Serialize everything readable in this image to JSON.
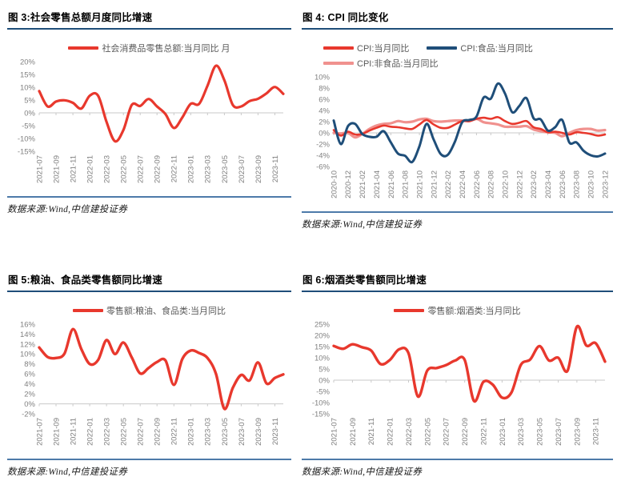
{
  "source_note": "数据来源:Wind,中信建投证券",
  "colors": {
    "red": "#e8382d",
    "dark_blue": "#1f4e79",
    "pink": "#f0918e",
    "title_rule": "#1f4e79",
    "source_rule": "#4d7aa9",
    "axis": "#c9c9c9",
    "tick_text": "#808080",
    "legend_text": "#595959"
  },
  "chart_data": [
    {
      "type": "line",
      "title": "图 3:社会零售总额月度同比增速",
      "ylabel": "",
      "xlabel": "",
      "ylim": [
        -15,
        20
      ],
      "yticks": [
        20,
        15,
        10,
        5,
        0,
        -5,
        -10,
        -15
      ],
      "ytick_format": "percent",
      "grid": false,
      "legend_position": "top-center",
      "x": [
        "2021-07",
        "2021-08",
        "2021-09",
        "2021-10",
        "2021-11",
        "2021-12",
        "2022-01",
        "2022-02",
        "2022-03",
        "2022-04",
        "2022-05",
        "2022-06",
        "2022-07",
        "2022-08",
        "2022-09",
        "2022-10",
        "2022-11",
        "2022-12",
        "2023-01",
        "2023-02",
        "2023-03",
        "2023-04",
        "2023-05",
        "2023-06",
        "2023-07",
        "2023-08",
        "2023-09",
        "2023-10",
        "2023-11",
        "2023-12"
      ],
      "xtick_every": 2,
      "series": [
        {
          "name": "社会消费品零售总额:当月同比 月",
          "color": "#e8382d",
          "width": 3.2,
          "values": [
            8.5,
            2.5,
            4.4,
            4.9,
            3.9,
            1.7,
            6.7,
            6.7,
            -3.5,
            -11.1,
            -6.7,
            3.1,
            2.7,
            5.4,
            2.5,
            -0.5,
            -5.9,
            -1.8,
            3.5,
            3.5,
            10.6,
            18.4,
            12.7,
            3.1,
            2.5,
            4.6,
            5.5,
            7.6,
            10.1,
            7.4
          ]
        }
      ]
    },
    {
      "type": "line",
      "title": "图 4: CPI 同比变化",
      "ylabel": "",
      "xlabel": "",
      "ylim": [
        -6,
        10
      ],
      "yticks": [
        10,
        8,
        6,
        4,
        2,
        0,
        -2,
        -4,
        -6
      ],
      "ytick_format": "percent",
      "grid": false,
      "legend_position": "top-center",
      "legend_fixed_width": 335,
      "x": [
        "2020-10",
        "2020-11",
        "2020-12",
        "2021-01",
        "2021-02",
        "2021-03",
        "2021-04",
        "2021-05",
        "2021-06",
        "2021-07",
        "2021-08",
        "2021-09",
        "2021-10",
        "2021-11",
        "2021-12",
        "2022-01",
        "2022-02",
        "2022-03",
        "2022-04",
        "2022-05",
        "2022-06",
        "2022-07",
        "2022-08",
        "2022-09",
        "2022-10",
        "2022-11",
        "2022-12",
        "2023-01",
        "2023-02",
        "2023-03",
        "2023-04",
        "2023-05",
        "2023-06",
        "2023-07",
        "2023-08",
        "2023-09",
        "2023-10",
        "2023-11",
        "2023-12"
      ],
      "xtick_every": 2,
      "draw_order": [
        2,
        0,
        1
      ],
      "series": [
        {
          "name": "CPI:当月同比",
          "color": "#e8382d",
          "width": 2.6,
          "values": [
            0.5,
            -0.5,
            0.2,
            -0.3,
            -0.2,
            0.4,
            0.9,
            1.3,
            1.1,
            1.0,
            0.8,
            0.7,
            1.5,
            2.3,
            1.5,
            0.9,
            0.9,
            1.5,
            2.1,
            2.1,
            2.5,
            2.7,
            2.5,
            2.8,
            2.1,
            1.6,
            1.8,
            2.1,
            1.0,
            0.7,
            0.1,
            0.2,
            0.0,
            -0.3,
            0.1,
            0.0,
            -0.2,
            -0.5,
            -0.3
          ]
        },
        {
          "name": "CPI:食品:当月同比",
          "color": "#1f4e79",
          "width": 3.0,
          "values": [
            2.2,
            -2.0,
            1.2,
            1.6,
            -0.2,
            -0.7,
            -0.7,
            0.3,
            -1.7,
            -3.7,
            -4.1,
            -5.2,
            -2.4,
            1.6,
            -1.2,
            -3.8,
            -3.9,
            -1.5,
            1.9,
            2.3,
            2.9,
            6.3,
            6.1,
            8.8,
            7.0,
            3.7,
            4.8,
            6.2,
            2.6,
            2.4,
            0.4,
            1.0,
            2.3,
            -1.7,
            -1.7,
            -3.2,
            -4.0,
            -4.2,
            -3.7
          ]
        },
        {
          "name": "CPI:非食品:当月同比",
          "color": "#f0918e",
          "width": 3.2,
          "values": [
            0.0,
            -0.1,
            0.0,
            -0.8,
            -0.2,
            0.7,
            1.3,
            1.6,
            1.7,
            2.1,
            1.9,
            2.0,
            2.4,
            2.5,
            2.1,
            2.0,
            2.1,
            2.2,
            2.2,
            2.1,
            2.5,
            1.9,
            1.7,
            1.5,
            1.1,
            1.1,
            1.1,
            1.2,
            0.6,
            0.3,
            0.1,
            0.0,
            -0.6,
            0.0,
            0.5,
            0.7,
            0.7,
            0.4,
            0.5
          ]
        }
      ]
    },
    {
      "type": "line",
      "title": "图 5:粮油、食品类零售额同比增速",
      "ylabel": "",
      "xlabel": "",
      "ylim": [
        -2,
        16
      ],
      "yticks": [
        16,
        14,
        12,
        10,
        8,
        6,
        4,
        2,
        0,
        -2
      ],
      "ytick_format": "percent",
      "grid": false,
      "legend_position": "top-center",
      "x": [
        "2021-07",
        "2021-08",
        "2021-09",
        "2021-10",
        "2021-11",
        "2021-12",
        "2022-01",
        "2022-02",
        "2022-03",
        "2022-04",
        "2022-05",
        "2022-06",
        "2022-07",
        "2022-08",
        "2022-09",
        "2022-10",
        "2022-11",
        "2022-12",
        "2023-01",
        "2023-02",
        "2023-03",
        "2023-04",
        "2023-05",
        "2023-06",
        "2023-07",
        "2023-08",
        "2023-09",
        "2023-10",
        "2023-11",
        "2023-12"
      ],
      "xtick_every": 2,
      "series": [
        {
          "name": "零售额:粮油、食品类:当月同比",
          "color": "#e8382d",
          "width": 3.4,
          "values": [
            11.3,
            9.4,
            9.2,
            10.1,
            15.0,
            11.0,
            8.0,
            8.8,
            12.8,
            10.0,
            12.3,
            9.3,
            6.1,
            7.2,
            8.4,
            8.7,
            3.8,
            9.0,
            10.7,
            10.2,
            9.2,
            6.0,
            -1.0,
            3.2,
            5.8,
            4.7,
            8.3,
            4.1,
            5.2,
            5.9
          ]
        }
      ]
    },
    {
      "type": "line",
      "title": "图 6:烟酒类零售额同比增速",
      "ylabel": "",
      "xlabel": "",
      "ylim": [
        -15,
        25
      ],
      "yticks": [
        25,
        20,
        15,
        10,
        5,
        0,
        -5,
        -10,
        -15
      ],
      "ytick_format": "percent",
      "grid": false,
      "legend_position": "top-center",
      "x": [
        "2021-07",
        "2021-08",
        "2021-09",
        "2021-10",
        "2021-11",
        "2021-12",
        "2022-01",
        "2022-02",
        "2022-03",
        "2022-04",
        "2022-05",
        "2022-06",
        "2022-07",
        "2022-08",
        "2022-09",
        "2022-10",
        "2022-11",
        "2022-12",
        "2023-01",
        "2023-02",
        "2023-03",
        "2023-04",
        "2023-05",
        "2023-06",
        "2023-07",
        "2023-08",
        "2023-09",
        "2023-10",
        "2023-11",
        "2023-12"
      ],
      "xtick_every": 2,
      "series": [
        {
          "name": "零售额:烟酒类:当月同比",
          "color": "#e8382d",
          "width": 3.4,
          "values": [
            15.3,
            14.0,
            16.0,
            14.7,
            13.2,
            7.2,
            9.0,
            13.8,
            12.0,
            -7.3,
            4.3,
            5.4,
            6.7,
            8.8,
            9.0,
            -9.3,
            -0.8,
            -2.0,
            -7.8,
            -5.5,
            6.8,
            9.2,
            15.2,
            8.8,
            10.0,
            4.2,
            23.9,
            15.5,
            16.5,
            8.3
          ]
        }
      ]
    }
  ]
}
